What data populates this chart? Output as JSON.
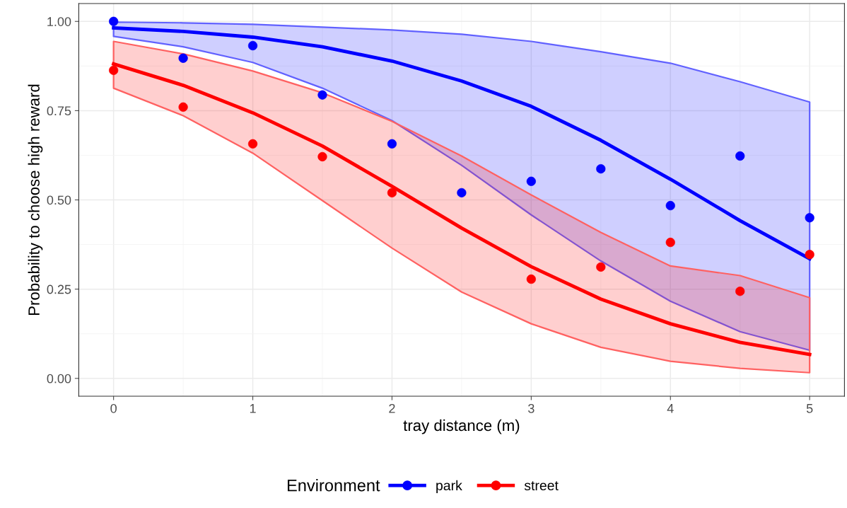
{
  "chart_data": {
    "type": "line",
    "xlabel": "tray distance (m)",
    "ylabel": "Probability to choose high reward",
    "legend_title": "Environment",
    "x": [
      0,
      0.5,
      1,
      1.5,
      2,
      2.5,
      3,
      3.5,
      4,
      4.5,
      5
    ],
    "series": [
      {
        "name": "park",
        "color": "#0000ff",
        "marker": "none",
        "values": [
          0.982,
          0.972,
          0.956,
          0.929,
          0.889,
          0.833,
          0.762,
          0.667,
          0.558,
          0.442,
          0.335
        ],
        "lower": [
          0.958,
          0.929,
          0.885,
          0.813,
          0.722,
          0.597,
          0.458,
          0.329,
          0.216,
          0.131,
          0.079
        ],
        "upper": [
          0.998,
          0.996,
          0.992,
          0.984,
          0.976,
          0.964,
          0.944,
          0.915,
          0.883,
          0.831,
          0.774
        ]
      },
      {
        "name": "street",
        "color": "#ff0000",
        "marker": "none",
        "values": [
          0.881,
          0.821,
          0.744,
          0.651,
          0.538,
          0.421,
          0.313,
          0.222,
          0.153,
          0.101,
          0.067
        ],
        "lower": [
          0.813,
          0.736,
          0.631,
          0.498,
          0.365,
          0.242,
          0.153,
          0.087,
          0.048,
          0.028,
          0.016
        ],
        "upper": [
          0.944,
          0.909,
          0.861,
          0.8,
          0.72,
          0.623,
          0.514,
          0.409,
          0.315,
          0.288,
          0.226
        ]
      },
      {
        "color": "#0000ff",
        "type": "scatter",
        "x": [
          0,
          0.5,
          1,
          1.5,
          2,
          2.5,
          3,
          3.5,
          4,
          4.5,
          5
        ],
        "values": [
          1.0,
          0.897,
          0.932,
          0.794,
          0.657,
          0.52,
          0.552,
          0.587,
          0.484,
          0.623,
          0.45
        ]
      },
      {
        "color": "#ff0000",
        "type": "scatter",
        "x": [
          0,
          0.5,
          1,
          1.5,
          2,
          3,
          3.5,
          4,
          4.5,
          5
        ],
        "values": [
          0.863,
          0.76,
          0.657,
          0.621,
          0.52,
          0.278,
          0.312,
          0.381,
          0.244,
          0.347
        ]
      }
    ],
    "xlim": [
      -0.25,
      5.25
    ],
    "ylim": [
      -0.05,
      1.05
    ],
    "xticks": [
      0,
      1,
      2,
      3,
      4,
      5
    ],
    "yticks": [
      {
        "value": 0,
        "label": "0.00"
      },
      {
        "value": 0.25,
        "label": "0.25"
      },
      {
        "value": 0.5,
        "label": "0.50"
      },
      {
        "value": 0.75,
        "label": "0.75"
      },
      {
        "value": 1,
        "label": "1.00"
      }
    ],
    "grid": true,
    "legend": "bottom",
    "marker": "circle",
    "line_style": "solid"
  }
}
